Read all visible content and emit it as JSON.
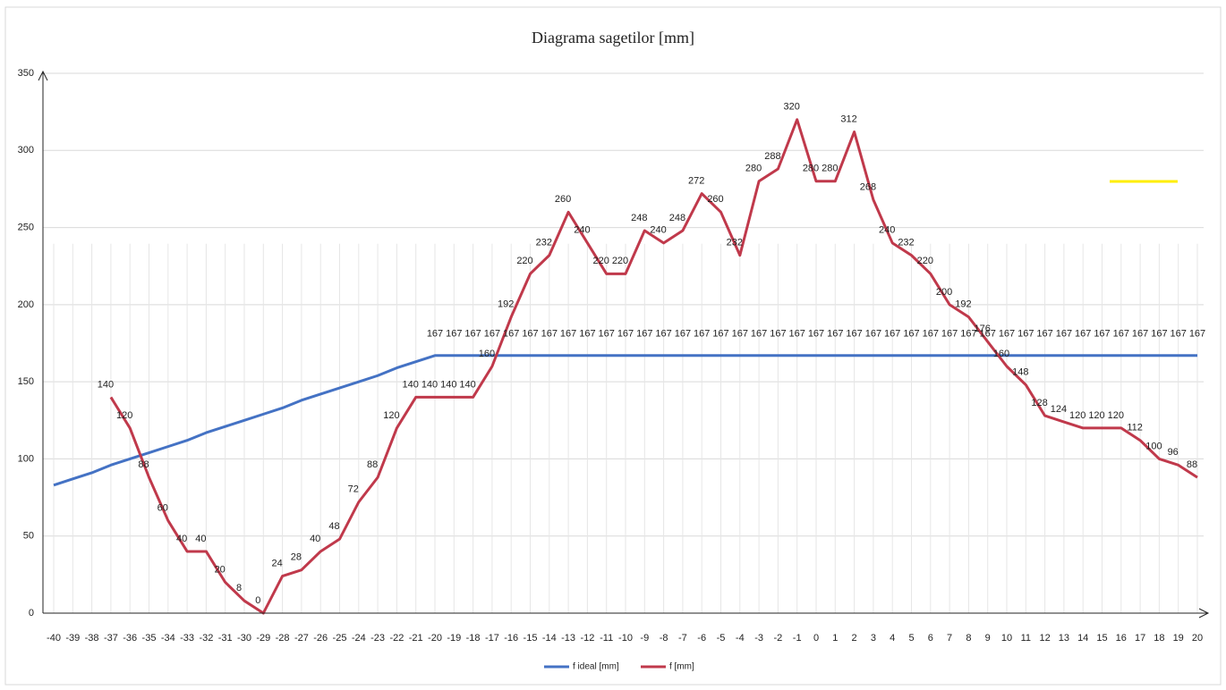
{
  "chart_data": {
    "type": "line",
    "title": "Diagrama sagetilor [mm]",
    "categories": [
      "-40",
      "-39",
      "-38",
      "-37",
      "-36",
      "-35",
      "-34",
      "-33",
      "-32",
      "-31",
      "-30",
      "-29",
      "-28",
      "-27",
      "-26",
      "-25",
      "-24",
      "-23",
      "-22",
      "-21",
      "-20",
      "-19",
      "-18",
      "-17",
      "-16",
      "-15",
      "-14",
      "-13",
      "-12",
      "-11",
      "-10",
      "-9",
      "-8",
      "-7",
      "-6",
      "-5",
      "-4",
      "-3",
      "-2",
      "-1",
      "0",
      "1",
      "2",
      "3",
      "4",
      "5",
      "6",
      "7",
      "8",
      "9",
      "10",
      "11",
      "12",
      "13",
      "14",
      "15",
      "16",
      "17",
      "18",
      "19",
      "20"
    ],
    "series": [
      {
        "name": "f ideal [mm]",
        "color": "#4472c4",
        "values": [
          83,
          87,
          91,
          96,
          100,
          104,
          108,
          112,
          117,
          121,
          125,
          129,
          133,
          138,
          142,
          146,
          150,
          154,
          159,
          163,
          167,
          167,
          167,
          167,
          167,
          167,
          167,
          167,
          167,
          167,
          167,
          167,
          167,
          167,
          167,
          167,
          167,
          167,
          167,
          167,
          167,
          167,
          167,
          167,
          167,
          167,
          167,
          167,
          167,
          167,
          167,
          167,
          167,
          167,
          167,
          167,
          167,
          167,
          167,
          167,
          167
        ],
        "value_labels": [
          null,
          null,
          null,
          null,
          null,
          null,
          null,
          null,
          null,
          null,
          null,
          null,
          null,
          null,
          null,
          null,
          null,
          null,
          null,
          null,
          "167",
          "167",
          "167",
          "167",
          "167",
          "167",
          "167",
          "167",
          "167",
          "167",
          "167",
          "167",
          "167",
          "167",
          "167",
          "167",
          "167",
          "167",
          "167",
          "167",
          "167",
          "167",
          "167",
          "167",
          "167",
          "167",
          "167",
          "167",
          "167",
          "167",
          "167",
          "167",
          "167",
          "167",
          "167",
          "167",
          "167",
          "167",
          "167",
          "167",
          "167"
        ]
      },
      {
        "name": "f [mm]",
        "color": "#c0394b",
        "values": [
          null,
          null,
          null,
          140,
          120,
          88,
          60,
          40,
          40,
          20,
          8,
          0,
          24,
          28,
          40,
          48,
          72,
          88,
          120,
          140,
          140,
          140,
          140,
          160,
          192,
          220,
          232,
          260,
          240,
          220,
          220,
          248,
          240,
          248,
          272,
          260,
          232,
          280,
          288,
          320,
          280,
          280,
          312,
          268,
          240,
          232,
          220,
          200,
          192,
          176,
          160,
          148,
          128,
          124,
          120,
          120,
          120,
          112,
          100,
          96,
          88
        ]
      }
    ],
    "ylim": [
      0,
      350
    ],
    "yticks": [
      0,
      50,
      100,
      150,
      200,
      250,
      300,
      350
    ],
    "grid": true,
    "legend": "bottom"
  }
}
